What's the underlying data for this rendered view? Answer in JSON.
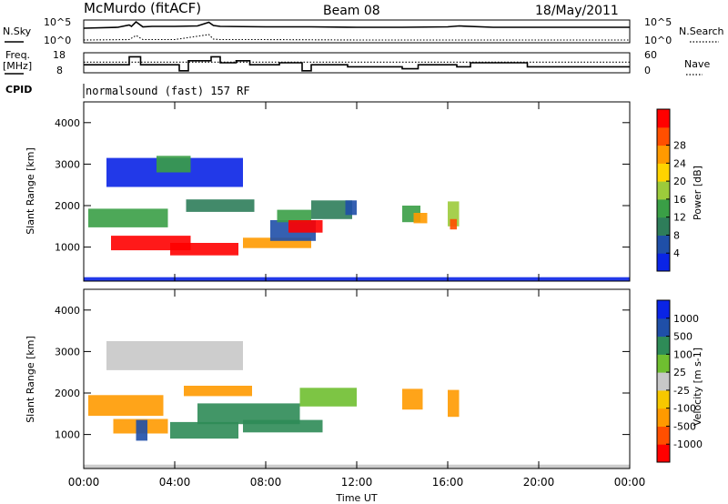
{
  "header": {
    "station": "McMurdo (fitACF)",
    "beam": "Beam 08",
    "date": "18/May/2011"
  },
  "left_labels": {
    "nsky": "N.Sky",
    "freq_top": "Freq.",
    "freq_unit": "[MHz]",
    "cpid": "CPID"
  },
  "right_labels": {
    "nsearch": "N.Search",
    "nave": "Nave"
  },
  "cpid_text": "normalsound (fast) 157 RF",
  "colors": {
    "power": [
      "#0a24e6",
      "#1f4fa8",
      "#2e7d5a",
      "#3a9f46",
      "#9ccb3b",
      "#ffd400",
      "#ff9a00",
      "#ff4f00",
      "#ff0000"
    ],
    "velocity": [
      "#ff0000",
      "#ff4f00",
      "#ff9a00",
      "#f7c800",
      "#c8c8c8",
      "#6fbf30",
      "#2e8b57",
      "#1f4fa8",
      "#0a24e6"
    ]
  },
  "chart_data": [
    {
      "panel": "noise",
      "type": "line",
      "left_ticks": [
        "10^5",
        "10^0"
      ],
      "right_ticks": [
        "10^5",
        "10^0"
      ],
      "series": [
        {
          "name": "N.Sky",
          "style": "solid",
          "x": [
            0,
            1.5,
            2.0,
            2.1,
            2.3,
            2.6,
            3.0,
            4.0,
            5.0,
            5.5,
            5.7,
            6.0,
            8.0,
            10.0,
            12.0,
            14.0,
            16.0,
            16.5,
            18.0,
            20.0,
            22.0,
            24.0
          ],
          "y": [
            3.2,
            3.4,
            3.9,
            3.6,
            4.6,
            3.5,
            3.6,
            3.6,
            3.7,
            4.5,
            3.8,
            3.6,
            3.5,
            3.5,
            3.4,
            3.4,
            3.5,
            3.7,
            3.4,
            3.4,
            3.4,
            3.4
          ]
        },
        {
          "name": "N.Search",
          "style": "dotted",
          "x": [
            0,
            2.0,
            2.3,
            2.6,
            4.0,
            5.5,
            5.7,
            6.0,
            8.0,
            12.0,
            16.0,
            20.0,
            24.0
          ],
          "y": [
            0.6,
            0.7,
            1.6,
            0.7,
            0.7,
            1.8,
            0.8,
            0.7,
            0.7,
            0.6,
            0.6,
            0.6,
            0.6
          ]
        }
      ]
    },
    {
      "panel": "frequency",
      "type": "line",
      "left_ticks": [
        "18",
        "8"
      ],
      "right_ticks": [
        "60",
        "0"
      ],
      "series": [
        {
          "name": "Freq.",
          "style": "solid",
          "x": [
            0,
            2.0,
            2.0,
            2.5,
            2.5,
            4.2,
            4.2,
            4.6,
            4.6,
            5.6,
            5.6,
            6.0,
            6.0,
            6.7,
            6.7,
            7.3,
            7.3,
            8.6,
            8.6,
            9.6,
            9.6,
            10.0,
            10.0,
            11.6,
            11.6,
            14.0,
            14.0,
            14.7,
            14.7,
            16.4,
            16.4,
            17.0,
            17.0,
            19.5,
            19.5,
            24
          ],
          "y": [
            12,
            12,
            16,
            16,
            12,
            12,
            9,
            9,
            14,
            14,
            16,
            16,
            13,
            13,
            14,
            14,
            12,
            12,
            13,
            13,
            9,
            9,
            12,
            12,
            11,
            11,
            10,
            10,
            12,
            12,
            11,
            11,
            13,
            13,
            11,
            11
          ]
        },
        {
          "name": "Nave",
          "style": "dotted",
          "x": [
            0,
            24
          ],
          "y": [
            32,
            32
          ]
        }
      ]
    },
    {
      "panel": "power",
      "type": "heatmap",
      "x_range": [
        0,
        24
      ],
      "y_range": [
        180,
        4500
      ],
      "ylabel": "Slant Range [km]",
      "yticks": [
        "1000",
        "2000",
        "3000",
        "4000"
      ],
      "colorbar_label": "Power [dB]",
      "colorbar_ticks": [
        "4",
        "8",
        "12",
        "16",
        "20",
        "24",
        "28"
      ],
      "blobs": [
        {
          "x": 0.2,
          "w": 3.5,
          "y": 1700,
          "h": 450,
          "level": 3
        },
        {
          "x": 1.2,
          "w": 3.5,
          "y": 1100,
          "h": 350,
          "level": 8
        },
        {
          "x": 3.8,
          "w": 3.0,
          "y": 950,
          "h": 300,
          "level": 8
        },
        {
          "x": 4.5,
          "w": 3.0,
          "y": 2000,
          "h": 300,
          "level": 2
        },
        {
          "x": 7.0,
          "w": 3.0,
          "y": 1100,
          "h": 250,
          "level": 6
        },
        {
          "x": 8.2,
          "w": 2.0,
          "y": 1400,
          "h": 500,
          "level": 1
        },
        {
          "x": 8.5,
          "w": 1.5,
          "y": 1750,
          "h": 300,
          "level": 3
        },
        {
          "x": 9.0,
          "w": 1.5,
          "y": 1500,
          "h": 300,
          "level": 8
        },
        {
          "x": 10.0,
          "w": 1.8,
          "y": 1900,
          "h": 450,
          "level": 2
        },
        {
          "x": 1.0,
          "w": 6.0,
          "y": 2800,
          "h": 700,
          "level": 0
        },
        {
          "x": 3.2,
          "w": 1.5,
          "y": 3000,
          "h": 400,
          "level": 3
        },
        {
          "x": 14.0,
          "w": 0.8,
          "y": 1800,
          "h": 400,
          "level": 3
        },
        {
          "x": 14.5,
          "w": 0.6,
          "y": 1700,
          "h": 250,
          "level": 6
        },
        {
          "x": 16.0,
          "w": 0.5,
          "y": 1800,
          "h": 600,
          "level": 4
        },
        {
          "x": 16.1,
          "w": 0.3,
          "y": 1550,
          "h": 250,
          "level": 7
        },
        {
          "x": 0.0,
          "w": 24.0,
          "y": 200,
          "h": 150,
          "level": 0
        },
        {
          "x": 11.5,
          "w": 0.5,
          "y": 1950,
          "h": 350,
          "level": 1
        }
      ]
    },
    {
      "panel": "velocity",
      "type": "heatmap",
      "x_range": [
        0,
        24
      ],
      "y_range": [
        180,
        4500
      ],
      "ylabel": "Slant Range [km]",
      "yticks": [
        "1000",
        "2000",
        "3000",
        "4000"
      ],
      "xticks": [
        "00:00",
        "04:00",
        "08:00",
        "12:00",
        "16:00",
        "20:00",
        "00:00"
      ],
      "xlabel": "Time UT",
      "colorbar_label": "Velocity [m s-1]",
      "colorbar_ticks": [
        "-1000",
        "-500",
        "-100",
        "-25",
        "25",
        "100",
        "500",
        "1000"
      ],
      "blobs": [
        {
          "x": 0.2,
          "w": 3.3,
          "y": 1700,
          "h": 500,
          "level": 2
        },
        {
          "x": 1.3,
          "w": 2.4,
          "y": 1200,
          "h": 350,
          "level": 2
        },
        {
          "x": 3.8,
          "w": 3.0,
          "y": 1100,
          "h": 400,
          "level": 6
        },
        {
          "x": 5.0,
          "w": 4.5,
          "y": 1500,
          "h": 500,
          "level": 6
        },
        {
          "x": 7.0,
          "w": 3.5,
          "y": 1200,
          "h": 300,
          "level": 6
        },
        {
          "x": 9.5,
          "w": 2.5,
          "y": 1900,
          "h": 450,
          "level": 5
        },
        {
          "x": 4.4,
          "w": 3.0,
          "y": 2050,
          "h": 250,
          "level": 2
        },
        {
          "x": 1.0,
          "w": 6.0,
          "y": 2900,
          "h": 700,
          "level": 4
        },
        {
          "x": 14.0,
          "w": 0.9,
          "y": 1850,
          "h": 500,
          "level": 2
        },
        {
          "x": 16.0,
          "w": 0.5,
          "y": 1750,
          "h": 650,
          "level": 2
        },
        {
          "x": 0.0,
          "w": 24.0,
          "y": 200,
          "h": 150,
          "level": 4
        },
        {
          "x": 2.3,
          "w": 0.5,
          "y": 1100,
          "h": 500,
          "level": 7
        }
      ]
    }
  ]
}
